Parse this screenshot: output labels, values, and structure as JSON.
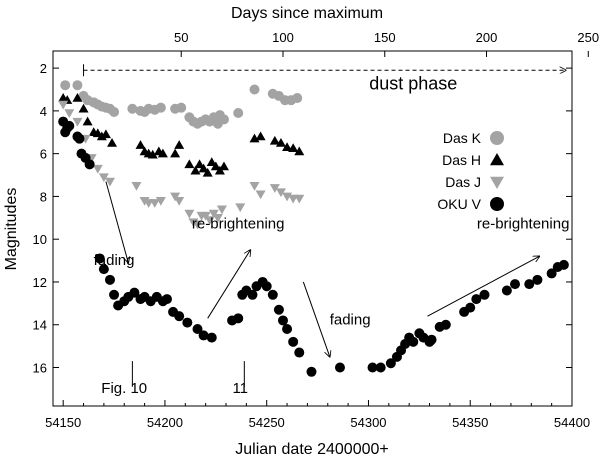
{
  "chart_data": {
    "type": "scatter",
    "x_axis": {
      "label": "Julian date 2400000+",
      "range": [
        54145,
        54400
      ],
      "ticks": [
        54150,
        54200,
        54250,
        54300,
        54350,
        54400
      ],
      "tick_labels": [
        "54150",
        "54200",
        "54250",
        "54300",
        "54350",
        "54400"
      ]
    },
    "x2_axis": {
      "label": "Days since maximum",
      "maximum_jd": 54158,
      "ticks": [
        50,
        100,
        150,
        200,
        250
      ],
      "tick_labels": [
        "50",
        "100",
        "150",
        "200",
        "250"
      ]
    },
    "y_axis": {
      "label": "Magnitudes",
      "range": [
        1.2,
        17.8
      ],
      "inverted": true,
      "ticks": [
        2,
        4,
        6,
        8,
        10,
        12,
        14,
        16
      ],
      "tick_labels": [
        "2",
        "4",
        "6",
        "8",
        "10",
        "12",
        "14",
        "16"
      ]
    },
    "series": [
      {
        "name": "Das K",
        "marker": "circle",
        "color": "#a3a3a3",
        "points": [
          [
            54151,
            2.8
          ],
          [
            54157,
            2.8
          ],
          [
            54160,
            3.3
          ],
          [
            54162,
            3.5
          ],
          [
            54165,
            3.6
          ],
          [
            54167,
            3.7
          ],
          [
            54169,
            3.8
          ],
          [
            54171,
            3.85
          ],
          [
            54173,
            3.9
          ],
          [
            54175,
            4.05
          ],
          [
            54184,
            3.9
          ],
          [
            54188,
            4.0
          ],
          [
            54190,
            4.05
          ],
          [
            54192,
            3.9
          ],
          [
            54195,
            3.95
          ],
          [
            54198,
            3.85
          ],
          [
            54205,
            3.9
          ],
          [
            54208,
            3.85
          ],
          [
            54212,
            4.3
          ],
          [
            54214,
            4.5
          ],
          [
            54216,
            4.6
          ],
          [
            54218,
            4.5
          ],
          [
            54220,
            4.4
          ],
          [
            54222,
            4.5
          ],
          [
            54224,
            4.3
          ],
          [
            54226,
            4.6
          ],
          [
            54227,
            4.2
          ],
          [
            54229,
            4.4
          ],
          [
            54236,
            4.1
          ],
          [
            54244,
            3.0
          ],
          [
            54253,
            3.2
          ],
          [
            54256,
            3.3
          ],
          [
            54259,
            3.5
          ],
          [
            54262,
            3.5
          ],
          [
            54265,
            3.4
          ]
        ]
      },
      {
        "name": "Das H",
        "marker": "triangle-up",
        "color": "#000000",
        "points": [
          [
            54150,
            3.4
          ],
          [
            54152,
            3.5
          ],
          [
            54157,
            3.4
          ],
          [
            54160,
            3.9
          ],
          [
            54162,
            4.5
          ],
          [
            54165,
            5.0
          ],
          [
            54167,
            5.05
          ],
          [
            54169,
            5.2
          ],
          [
            54171,
            5.1
          ],
          [
            54174,
            5.5
          ],
          [
            54188,
            5.6
          ],
          [
            54190,
            5.9
          ],
          [
            54192,
            6.0
          ],
          [
            54194,
            6.05
          ],
          [
            54197,
            5.9
          ],
          [
            54199,
            6.0
          ],
          [
            54205,
            6.0
          ],
          [
            54207,
            5.6
          ],
          [
            54212,
            6.5
          ],
          [
            54215,
            6.8
          ],
          [
            54217,
            6.5
          ],
          [
            54219,
            6.7
          ],
          [
            54221,
            6.9
          ],
          [
            54223,
            6.4
          ],
          [
            54225,
            6.6
          ],
          [
            54227,
            6.8
          ],
          [
            54229,
            6.6
          ],
          [
            54244,
            5.3
          ],
          [
            54247,
            5.2
          ],
          [
            54254,
            5.4
          ],
          [
            54257,
            5.5
          ],
          [
            54260,
            5.7
          ],
          [
            54263,
            5.75
          ],
          [
            54266,
            5.9
          ]
        ]
      },
      {
        "name": "Das J",
        "marker": "triangle-down",
        "color": "#a3a3a3",
        "points": [
          [
            54150,
            3.7
          ],
          [
            54153,
            4.1
          ],
          [
            54157,
            4.5
          ],
          [
            54161,
            5.3
          ],
          [
            54164,
            6.2
          ],
          [
            54167,
            6.7
          ],
          [
            54170,
            7.1
          ],
          [
            54173,
            7.3
          ],
          [
            54186,
            7.5
          ],
          [
            54190,
            8.2
          ],
          [
            54192,
            8.3
          ],
          [
            54195,
            8.3
          ],
          [
            54198,
            8.2
          ],
          [
            54205,
            8.0
          ],
          [
            54207,
            8.2
          ],
          [
            54212,
            8.8
          ],
          [
            54214,
            9.2
          ],
          [
            54216,
            9.3
          ],
          [
            54218,
            8.9
          ],
          [
            54220,
            8.9
          ],
          [
            54222,
            9.1
          ],
          [
            54224,
            8.8
          ],
          [
            54226,
            9.0
          ],
          [
            54228,
            8.6
          ],
          [
            54237,
            8.5
          ],
          [
            54244,
            7.5
          ],
          [
            54247,
            7.9
          ],
          [
            54254,
            7.6
          ],
          [
            54257,
            7.8
          ],
          [
            54260,
            8.0
          ],
          [
            54263,
            8.1
          ],
          [
            54266,
            8.1
          ]
        ]
      },
      {
        "name": "OKU V",
        "marker": "circle",
        "color": "#000000",
        "points": [
          [
            54150,
            4.5
          ],
          [
            54151,
            5.0
          ],
          [
            54152,
            4.8
          ],
          [
            54153,
            4.7
          ],
          [
            54157,
            5.2
          ],
          [
            54158,
            5.3
          ],
          [
            54159,
            6.0
          ],
          [
            54161,
            6.2
          ],
          [
            54163,
            6.5
          ],
          [
            54168,
            10.9
          ],
          [
            54170,
            11.4
          ],
          [
            54173,
            11.9
          ],
          [
            54175,
            12.6
          ],
          [
            54177,
            13.1
          ],
          [
            54180,
            12.9
          ],
          [
            54182,
            12.7
          ],
          [
            54185,
            12.5
          ],
          [
            54188,
            12.8
          ],
          [
            54190,
            12.7
          ],
          [
            54193,
            12.9
          ],
          [
            54196,
            12.7
          ],
          [
            54199,
            12.9
          ],
          [
            54201,
            12.8
          ],
          [
            54204,
            13.4
          ],
          [
            54207,
            13.6
          ],
          [
            54211,
            13.9
          ],
          [
            54216,
            14.2
          ],
          [
            54219,
            14.5
          ],
          [
            54223,
            14.6
          ],
          [
            54233,
            13.8
          ],
          [
            54236,
            13.7
          ],
          [
            54238,
            12.6
          ],
          [
            54240,
            12.4
          ],
          [
            54243,
            12.6
          ],
          [
            54245,
            12.2
          ],
          [
            54248,
            12.0
          ],
          [
            54250,
            12.2
          ],
          [
            54253,
            12.6
          ],
          [
            54256,
            13.3
          ],
          [
            54258,
            13.8
          ],
          [
            54260,
            14.2
          ],
          [
            54263,
            14.8
          ],
          [
            54266,
            15.3
          ],
          [
            54272,
            16.2
          ],
          [
            54286,
            16.0
          ],
          [
            54302,
            16.0
          ],
          [
            54306,
            16.0
          ],
          [
            54311,
            15.8
          ],
          [
            54314,
            15.5
          ],
          [
            54316,
            15.2
          ],
          [
            54318,
            14.9
          ],
          [
            54320,
            14.6
          ],
          [
            54322,
            14.8
          ],
          [
            54325,
            14.4
          ],
          [
            54327,
            14.6
          ],
          [
            54330,
            14.8
          ],
          [
            54331,
            14.7
          ],
          [
            54335,
            14.1
          ],
          [
            54338,
            14.0
          ],
          [
            54347,
            13.4
          ],
          [
            54350,
            13.2
          ],
          [
            54353,
            12.8
          ],
          [
            54357,
            12.6
          ],
          [
            54368,
            12.4
          ],
          [
            54372,
            12.1
          ],
          [
            54379,
            12.1
          ],
          [
            54383,
            11.9
          ],
          [
            54390,
            11.6
          ],
          [
            54393,
            11.3
          ],
          [
            54396,
            11.2
          ]
        ]
      }
    ],
    "annotations": [
      {
        "text": "dust phase",
        "x": 54322,
        "y": 3.0,
        "kind": "big"
      },
      {
        "text": "fading",
        "x": 54175,
        "y": 11.2
      },
      {
        "text": "re-brightening",
        "x": 54236,
        "y": 9.5
      },
      {
        "text": "fading",
        "x": 54291,
        "y": 14.0
      },
      {
        "text": "re-brightening",
        "x": 54376,
        "y": 9.5
      },
      {
        "text": "Fig. 10",
        "x": 54180,
        "y": 17.2
      },
      {
        "text": "11",
        "x": 54237,
        "y": 17.2
      }
    ],
    "arrows": [
      {
        "from": [
          54171,
          7.3
        ],
        "to": [
          54182,
          11.1
        ]
      },
      {
        "from": [
          54221,
          13.7
        ],
        "to": [
          54242,
          10.5
        ]
      },
      {
        "from": [
          54268,
          12.0
        ],
        "to": [
          54281,
          15.5
        ]
      },
      {
        "from": [
          54329,
          13.6
        ],
        "to": [
          54384,
          10.8
        ]
      }
    ],
    "dust_phase_arrow": {
      "from_jd": 54160,
      "to_jd": 54397,
      "mag": 2.1
    },
    "markers": [
      {
        "label": "Fig. 10",
        "jd": 54184,
        "mag_top": 15.7,
        "mag_bottom": 16.9
      },
      {
        "label": "11",
        "jd": 54239,
        "mag_top": 15.7,
        "mag_bottom": 16.9
      }
    ]
  }
}
